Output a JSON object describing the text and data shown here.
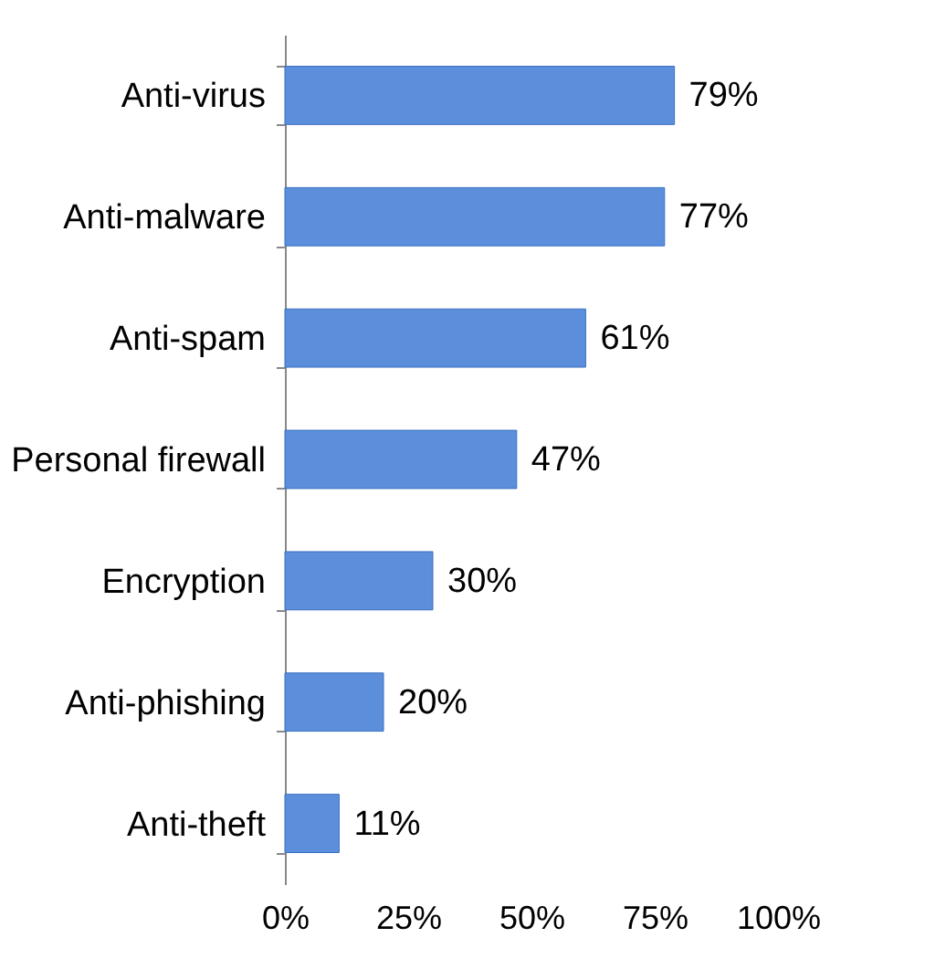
{
  "chart_data": {
    "type": "bar",
    "orientation": "horizontal",
    "categories": [
      "Anti-virus",
      "Anti-malware",
      "Anti-spam",
      "Personal firewall",
      "Encryption",
      "Anti-phishing",
      "Anti-theft"
    ],
    "values": [
      79,
      77,
      61,
      47,
      30,
      20,
      11
    ],
    "value_labels": [
      "79%",
      "77%",
      "61%",
      "47%",
      "30%",
      "20%",
      "11%"
    ],
    "color": "#5b8fdc",
    "xlim": [
      0,
      100
    ],
    "xticks": [
      {
        "value": 0,
        "label": "0%"
      },
      {
        "value": 25,
        "label": "25%"
      },
      {
        "value": 50,
        "label": "50%"
      },
      {
        "value": 75,
        "label": "75%"
      },
      {
        "value": 100,
        "label": "100%"
      }
    ],
    "grid": false
  }
}
